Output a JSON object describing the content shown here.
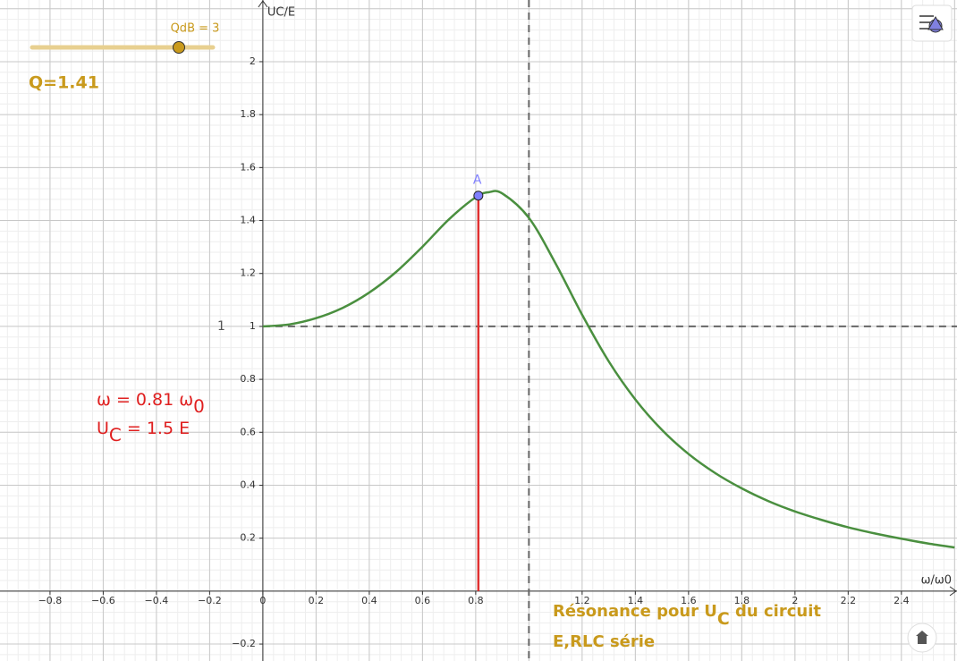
{
  "chart_data": {
    "type": "line",
    "x_axis_label": "ω/ω0",
    "y_axis_label": "UC/E",
    "xlim": [
      -0.988,
      2.609
    ],
    "ylim": [
      -0.264,
      2.233
    ],
    "xticks": [
      {
        "value": -0.8,
        "label": "−0.8"
      },
      {
        "value": -0.6,
        "label": "−0.6"
      },
      {
        "value": -0.4,
        "label": "−0.4"
      },
      {
        "value": -0.2,
        "label": "−0.2"
      },
      0,
      0.2,
      0.4,
      0.6,
      0.8,
      1.2,
      1.4,
      1.6,
      1.8,
      2,
      2.2,
      2.4
    ],
    "yticks": [
      {
        "value": -0.2,
        "label": "−0.2"
      },
      0.2,
      0.4,
      0.6,
      0.8,
      1,
      1.2,
      1.4,
      1.6,
      1.8,
      2
    ],
    "grid": true,
    "minor_divisions": 5,
    "x": [
      0,
      0.1,
      0.2,
      0.3,
      0.4,
      0.5,
      0.6,
      0.7,
      0.8,
      0.85,
      0.9,
      1.0,
      1.1,
      1.2,
      1.3,
      1.4,
      1.5,
      1.6,
      1.7,
      1.8,
      1.9,
      2.0,
      2.1,
      2.2,
      2.3,
      2.4,
      2.5,
      2.6
    ],
    "series": [
      {
        "color": "#4a8f3f",
        "values": [
          1,
          1.0075,
          1.031,
          1.07,
          1.128,
          1.205,
          1.301,
          1.405,
          1.488,
          1.507,
          1.502,
          1.41,
          1.238,
          1.044,
          0.868,
          0.724,
          0.609,
          0.518,
          0.446,
          0.388,
          0.34,
          0.301,
          0.269,
          0.241,
          0.218,
          0.198,
          0.18,
          0.165
        ]
      }
    ],
    "x_line": 1,
    "y_line": {
      "value": 1,
      "label": "1"
    },
    "point": {
      "label": "A",
      "x": 0.81,
      "y": 1.494,
      "color": "#e03030"
    },
    "slider": {
      "label": "QdB = 3"
    },
    "q_label": "Q=1.41",
    "annotations": [
      {
        "color": "#e02020",
        "lines": [
          [
            {
              "text": "ω = 0.81 ω"
            },
            {
              "text": "0",
              "sub": true
            }
          ],
          [
            {
              "text": "U"
            },
            {
              "text": "C",
              "sub": true
            },
            {
              "text": " = 1.5 E"
            }
          ]
        ]
      },
      {
        "color": "#c99a1c",
        "lines": [
          [
            {
              "text": "Résonance pour U"
            },
            {
              "text": "C",
              "sub": true
            },
            {
              "text": " du circuit"
            }
          ],
          [
            {
              "text": "E,RLC série"
            }
          ]
        ]
      }
    ]
  }
}
